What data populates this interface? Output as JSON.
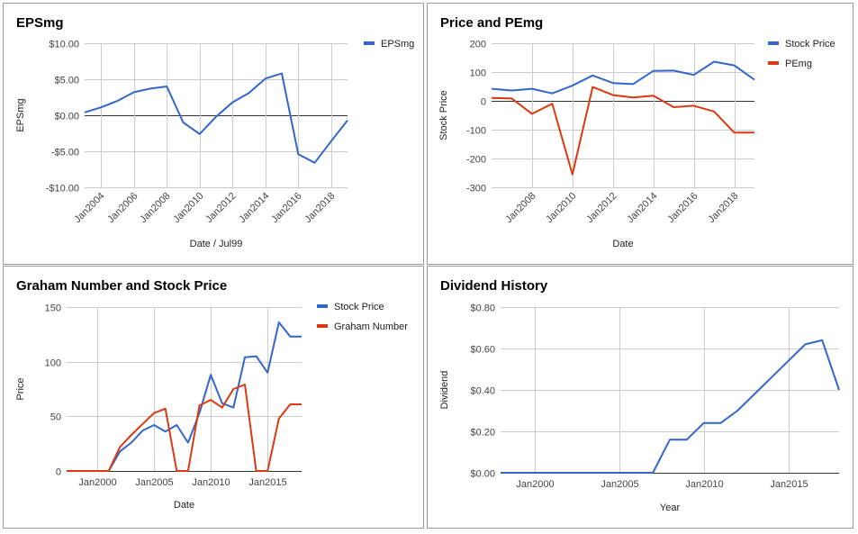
{
  "colors": {
    "blue": "#3366cc",
    "red": "#dc3912",
    "grid": "#cccccc",
    "zero": "#333333",
    "border": "#999999"
  },
  "chart_data": [
    {
      "type": "line",
      "title": "EPSmg",
      "xlabel": "Date / Jul99",
      "ylabel": "EPSmg",
      "ylim": [
        -10,
        10
      ],
      "yticks": [
        10,
        5,
        0,
        -5,
        -10
      ],
      "ytick_labels": [
        "$10.00",
        "$5.00",
        "$0.00",
        "-$5.00",
        "-$10.00"
      ],
      "xlim": [
        2003,
        2019
      ],
      "xticks": [
        2004,
        2006,
        2008,
        2010,
        2012,
        2014,
        2016,
        2018
      ],
      "xtick_labels": [
        "Jan2004",
        "Jan2006",
        "Jan2008",
        "Jan2010",
        "Jan2012",
        "Jan2014",
        "Jan2016",
        "Jan2018"
      ],
      "legend_position": "top-right",
      "grid": true,
      "series": [
        {
          "name": "EPSmg",
          "color": "blue",
          "x": [
            2003,
            2004,
            2005,
            2006,
            2007,
            2008,
            2009,
            2010,
            2011,
            2012,
            2013,
            2014,
            2015,
            2016,
            2017,
            2018,
            2019
          ],
          "y": [
            0.4,
            1.1,
            2.0,
            3.2,
            3.7,
            4.0,
            -1.0,
            -2.6,
            -0.2,
            1.8,
            3.1,
            5.1,
            5.8,
            -5.4,
            -6.6,
            -3.6,
            -0.7
          ]
        }
      ]
    },
    {
      "type": "line",
      "title": "Price and PEmg",
      "xlabel": "Date",
      "ylabel": "Stock Price",
      "ylim": [
        -300,
        200
      ],
      "yticks": [
        200,
        100,
        0,
        -100,
        -200,
        -300
      ],
      "ytick_labels": [
        "200",
        "100",
        "0",
        "-100",
        "-200",
        "-300"
      ],
      "xlim": [
        2006,
        2019
      ],
      "xticks": [
        2008,
        2010,
        2012,
        2014,
        2016,
        2018
      ],
      "xtick_labels": [
        "Jan2008",
        "Jan2010",
        "Jan2012",
        "Jan2014",
        "Jan2016",
        "Jan2018"
      ],
      "legend_position": "top-right",
      "grid": true,
      "series": [
        {
          "name": "Stock Price",
          "color": "blue",
          "x": [
            2006,
            2007,
            2008,
            2009,
            2010,
            2011,
            2012,
            2013,
            2014,
            2015,
            2016,
            2017,
            2018,
            2019
          ],
          "y": [
            42,
            36,
            42,
            26,
            53,
            88,
            62,
            58,
            104,
            105,
            90,
            136,
            123,
            73
          ]
        },
        {
          "name": "PEmg",
          "color": "red",
          "x": [
            2006,
            2007,
            2008,
            2009,
            2010,
            2011,
            2012,
            2013,
            2014,
            2015,
            2016,
            2017,
            2018,
            2019
          ],
          "y": [
            10,
            8,
            -45,
            -10,
            -255,
            48,
            20,
            12,
            18,
            -22,
            -17,
            -37,
            -110,
            -110
          ]
        }
      ]
    },
    {
      "type": "line",
      "title": "Graham Number and Stock Price",
      "xlabel": "Date",
      "ylabel": "Price",
      "ylim": [
        0,
        150
      ],
      "yticks": [
        150,
        100,
        50,
        0
      ],
      "ytick_labels": [
        "150",
        "100",
        "50",
        "0"
      ],
      "xlim": [
        1997.3,
        2018
      ],
      "xticks": [
        2000,
        2005,
        2010,
        2015
      ],
      "xtick_labels": [
        "Jan2000",
        "Jan2005",
        "Jan2010",
        "Jan2015"
      ],
      "legend_position": "top-right",
      "grid": true,
      "series": [
        {
          "name": "Stock Price",
          "color": "blue",
          "x": [
            1997.3,
            1999,
            2001,
            2002,
            2003,
            2004,
            2005,
            2006,
            2007,
            2008,
            2009,
            2010,
            2011,
            2012,
            2013,
            2014,
            2015,
            2016,
            2017,
            2018
          ],
          "y": [
            0,
            0,
            0,
            18,
            26,
            37,
            42,
            36,
            42,
            26,
            53,
            88,
            62,
            58,
            104,
            105,
            90,
            136,
            123,
            123
          ]
        },
        {
          "name": "Graham Number",
          "color": "red",
          "x": [
            1997.3,
            1999,
            2001,
            2002,
            2003,
            2004,
            2005,
            2006,
            2007,
            2008,
            2009,
            2010,
            2011,
            2012,
            2013,
            2014,
            2015,
            2016,
            2017,
            2018
          ],
          "y": [
            0,
            0,
            0,
            22,
            33,
            43,
            53,
            57,
            0,
            0,
            60,
            65,
            58,
            75,
            79,
            0,
            0,
            48,
            61,
            61
          ]
        }
      ]
    },
    {
      "type": "line",
      "title": "Dividend History",
      "xlabel": "Year",
      "ylabel": "Dividend",
      "ylim": [
        0,
        0.8
      ],
      "yticks": [
        0.8,
        0.6,
        0.4,
        0.2,
        0
      ],
      "ytick_labels": [
        "$0.80",
        "$0.60",
        "$0.40",
        "$0.20",
        "$0.00"
      ],
      "xlim": [
        1998,
        2018
      ],
      "xticks": [
        2000,
        2005,
        2010,
        2015
      ],
      "xtick_labels": [
        "Jan2000",
        "Jan2005",
        "Jan2010",
        "Jan2015"
      ],
      "grid": true,
      "series": [
        {
          "color": "blue",
          "x": [
            1998,
            2007,
            2008,
            2009,
            2010,
            2011,
            2012,
            2013,
            2014,
            2015,
            2016,
            2017,
            2018
          ],
          "y": [
            0,
            0,
            0.16,
            0.16,
            0.24,
            0.24,
            0.3,
            0.38,
            0.46,
            0.54,
            0.62,
            0.64,
            0.4
          ]
        }
      ]
    }
  ]
}
